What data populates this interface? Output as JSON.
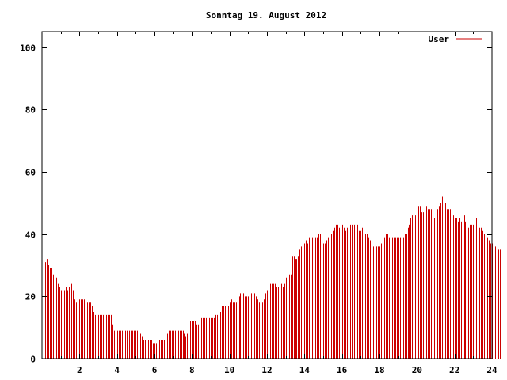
{
  "chart_data": {
    "type": "bar",
    "title": "Sonntag 19. August 2012",
    "xlabel": "",
    "ylabel": "",
    "xlim": [
      0,
      24
    ],
    "ylim": [
      0,
      105
    ],
    "x_ticks": [
      "2",
      "4",
      "6",
      "8",
      "10",
      "12",
      "14",
      "16",
      "18",
      "20",
      "22",
      "24"
    ],
    "y_ticks": [
      "0",
      "20",
      "40",
      "60",
      "80",
      "100"
    ],
    "grid": false,
    "legend_position": "top-right",
    "series": [
      {
        "name": "User",
        "color": "#cc0000",
        "interval_minutes": 5,
        "values": [
          30,
          31,
          32,
          30,
          29,
          29,
          27,
          26,
          26,
          24,
          23,
          22,
          22,
          22,
          23,
          22,
          23,
          23,
          24,
          22,
          19,
          18,
          19,
          19,
          19,
          19,
          19,
          18,
          18,
          18,
          18,
          17,
          15,
          14,
          14,
          14,
          14,
          14,
          14,
          14,
          14,
          14,
          14,
          14,
          11,
          9,
          9,
          9,
          9,
          9,
          9,
          9,
          9,
          9,
          9,
          9,
          9,
          9,
          9,
          9,
          9,
          9,
          8,
          7,
          6,
          6,
          6,
          6,
          6,
          6,
          5,
          5,
          5,
          4,
          6,
          6,
          6,
          6,
          8,
          8,
          9,
          9,
          9,
          9,
          9,
          9,
          9,
          9,
          9,
          9,
          8,
          7,
          8,
          8,
          12,
          12,
          12,
          12,
          11,
          11,
          11,
          13,
          13,
          13,
          13,
          13,
          13,
          13,
          13,
          13,
          14,
          14,
          15,
          15,
          17,
          17,
          17,
          17,
          17,
          18,
          19,
          18,
          18,
          18,
          20,
          20,
          21,
          20,
          21,
          20,
          20,
          20,
          20,
          21,
          22,
          21,
          20,
          19,
          18,
          18,
          18,
          19,
          21,
          22,
          23,
          24,
          24,
          24,
          24,
          23,
          23,
          23,
          24,
          23,
          24,
          26,
          26,
          27,
          27,
          33,
          33,
          32,
          32,
          33,
          35,
          36,
          35,
          37,
          38,
          37,
          39,
          39,
          39,
          39,
          39,
          39,
          40,
          40,
          38,
          37,
          37,
          38,
          39,
          40,
          40,
          41,
          42,
          43,
          43,
          42,
          43,
          43,
          42,
          41,
          42,
          43,
          43,
          43,
          42,
          43,
          43,
          43,
          41,
          41,
          42,
          40,
          40,
          40,
          39,
          38,
          37,
          36,
          36,
          36,
          36,
          36,
          37,
          38,
          39,
          40,
          40,
          39,
          40,
          39,
          39,
          39,
          39,
          39,
          39,
          39,
          39,
          40,
          40,
          42,
          43,
          45,
          46,
          47,
          46,
          46,
          49,
          49,
          47,
          47,
          48,
          49,
          48,
          48,
          48,
          47,
          45,
          46,
          48,
          49,
          50,
          52,
          53,
          50,
          48,
          48,
          48,
          47,
          46,
          45,
          45,
          44,
          45,
          44,
          45,
          46,
          44,
          44,
          42,
          43,
          43,
          43,
          43,
          45,
          44,
          42,
          42,
          41,
          40,
          39,
          39,
          38,
          37,
          37,
          36,
          36,
          35,
          35,
          35
        ]
      }
    ]
  }
}
